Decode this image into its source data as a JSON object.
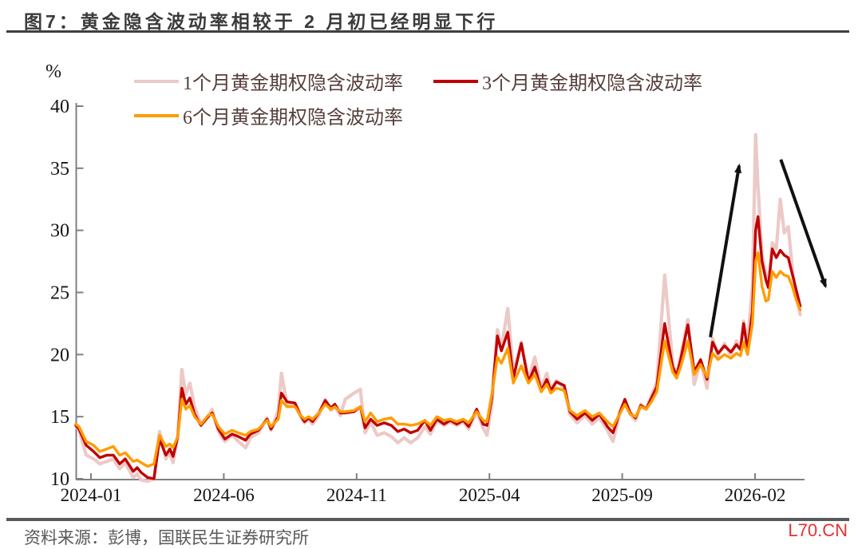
{
  "title": {
    "text": "图7：黄金隐含波动率相较于 2 月初已经明显下行"
  },
  "footer": {
    "source": "资料来源：彭博，国联民生证券研究所",
    "watermark": "L70.CN"
  },
  "colors": {
    "series_1m": "#ecc9c7",
    "series_3m": "#c00000",
    "series_6m": "#ff9c00",
    "axis": "#808080",
    "tick_label": "#141414",
    "legend_text": "#553f3a",
    "title_text": "#3b3b3b",
    "source_text": "#595959",
    "watermark_red": "#e63030",
    "arrow": "#111111"
  },
  "chart_data": {
    "type": "line",
    "unit_label": "%",
    "ylim": [
      10,
      40
    ],
    "y_ticks": [
      40,
      35,
      30,
      25,
      20,
      15,
      10
    ],
    "x_tick_labels": [
      "2024-01",
      "2024-06",
      "2024-11",
      "2025-04",
      "2025-09",
      "2026-02"
    ],
    "x_tick_months": [
      0,
      5,
      10,
      15,
      20,
      25
    ],
    "x_axis_unit": "months since 2024-01",
    "grid": false,
    "legend_position": "top",
    "x_months": [
      -0.57,
      -0.45,
      -0.18,
      0.1,
      0.33,
      0.6,
      0.84,
      1.08,
      1.29,
      1.59,
      1.74,
      1.89,
      2.13,
      2.37,
      2.58,
      2.82,
      2.97,
      3.09,
      3.27,
      3.42,
      3.57,
      3.72,
      3.9,
      4.14,
      4.41,
      4.56,
      4.8,
      5.04,
      5.31,
      5.55,
      5.82,
      6.0,
      6.3,
      6.63,
      6.78,
      7.05,
      7.17,
      7.38,
      7.68,
      7.89,
      8.04,
      8.19,
      8.34,
      8.58,
      8.82,
      9.03,
      9.18,
      9.39,
      9.57,
      9.9,
      10.14,
      10.32,
      10.53,
      10.77,
      11.04,
      11.31,
      11.55,
      11.79,
      12.03,
      12.3,
      12.57,
      12.78,
      13.02,
      13.29,
      13.53,
      13.77,
      14.01,
      14.22,
      14.52,
      14.76,
      14.91,
      15.09,
      15.3,
      15.45,
      15.69,
      15.9,
      16.2,
      16.47,
      16.71,
      16.95,
      17.16,
      17.31,
      17.52,
      17.82,
      18.03,
      18.3,
      18.6,
      18.87,
      19.14,
      19.44,
      19.65,
      19.9,
      20.1,
      20.3,
      20.5,
      20.7,
      20.9,
      21.1,
      21.3,
      21.6,
      21.9,
      22.05,
      22.2,
      22.47,
      22.71,
      22.95,
      23.19,
      23.4,
      23.61,
      23.85,
      24.09,
      24.3,
      24.45,
      24.57,
      24.72,
      24.9,
      25.02,
      25.11,
      25.26,
      25.41,
      25.5,
      25.65,
      25.8,
      25.95,
      26.1,
      26.25,
      26.4,
      26.55,
      26.7
    ],
    "series": [
      {
        "name": "1个月黄金期权隐含波动率",
        "color": "#ecc9c7",
        "width": 4.2,
        "values": [
          14.3,
          13.9,
          11.9,
          11.6,
          11.2,
          11.4,
          11.6,
          10.8,
          11.3,
          10.1,
          10.4,
          9.9,
          9.8,
          10.0,
          13.8,
          11.6,
          12.1,
          11.3,
          13.5,
          18.8,
          16.8,
          17.7,
          15.8,
          14.4,
          15.0,
          15.6,
          13.8,
          13.0,
          13.5,
          13.0,
          12.5,
          13.3,
          13.7,
          14.9,
          13.9,
          15.5,
          18.5,
          16.0,
          15.9,
          15.0,
          14.5,
          14.8,
          14.4,
          15.1,
          16.4,
          15.5,
          15.8,
          15.1,
          16.4,
          16.9,
          17.2,
          13.7,
          14.6,
          13.5,
          13.7,
          13.4,
          12.9,
          13.3,
          12.9,
          13.3,
          14.2,
          13.6,
          14.7,
          14.3,
          14.6,
          14.3,
          14.6,
          14.0,
          15.4,
          14.1,
          13.5,
          16.0,
          22.0,
          20.5,
          23.7,
          18.5,
          21.0,
          18.0,
          19.8,
          17.3,
          18.5,
          17.2,
          17.9,
          17.3,
          15.2,
          14.5,
          15.1,
          14.4,
          14.9,
          13.9,
          13.0,
          15.2,
          16.2,
          15.2,
          14.7,
          16.0,
          15.6,
          16.7,
          17.8,
          26.4,
          19.3,
          18.4,
          19.8,
          22.8,
          17.6,
          19.5,
          17.3,
          21.3,
          19.9,
          20.9,
          19.9,
          21.1,
          20.5,
          22.7,
          21.0,
          25.5,
          37.7,
          33.5,
          28.0,
          26.5,
          25.5,
          29.0,
          28.5,
          32.5,
          29.8,
          30.3,
          27.0,
          24.8,
          23.2
        ]
      },
      {
        "name": "3个月黄金期权隐含波动率",
        "color": "#c00000",
        "width": 3.4,
        "values": [
          14.3,
          14.0,
          12.7,
          12.2,
          11.7,
          11.9,
          11.9,
          11.2,
          11.6,
          10.6,
          10.9,
          10.5,
          10.1,
          10.0,
          13.2,
          11.9,
          12.4,
          11.8,
          13.4,
          17.3,
          16.0,
          16.5,
          15.2,
          14.3,
          15.0,
          15.3,
          14.0,
          13.2,
          13.6,
          13.4,
          13.1,
          13.6,
          13.9,
          14.8,
          14.0,
          15.0,
          16.9,
          16.2,
          16.1,
          15.1,
          14.6,
          14.9,
          14.6,
          15.3,
          16.3,
          15.7,
          16.0,
          15.3,
          15.3,
          15.4,
          15.8,
          14.1,
          14.8,
          14.3,
          14.5,
          14.3,
          13.8,
          14.0,
          13.7,
          13.9,
          14.7,
          13.9,
          14.8,
          14.4,
          14.7,
          14.4,
          14.7,
          14.2,
          15.6,
          14.4,
          14.3,
          16.5,
          21.5,
          20.3,
          21.8,
          18.1,
          20.9,
          17.8,
          19.0,
          17.1,
          18.0,
          17.1,
          17.8,
          17.5,
          15.4,
          14.8,
          15.3,
          14.7,
          15.2,
          14.2,
          13.7,
          15.3,
          16.4,
          15.3,
          14.9,
          15.9,
          15.6,
          16.5,
          17.4,
          22.5,
          19.0,
          18.3,
          19.6,
          22.4,
          18.6,
          19.6,
          18.0,
          21.0,
          20.1,
          20.7,
          20.2,
          20.8,
          20.4,
          22.5,
          20.3,
          23.5,
          30.0,
          31.1,
          27.5,
          26.0,
          25.4,
          28.5,
          27.8,
          28.4,
          28.0,
          27.8,
          26.5,
          25.2,
          23.9
        ]
      },
      {
        "name": "6个月黄金期权隐含波动率",
        "color": "#ff9c00",
        "width": 3.4,
        "values": [
          14.4,
          14.2,
          13.0,
          12.7,
          12.2,
          12.4,
          12.6,
          11.9,
          12.1,
          11.4,
          11.5,
          11.3,
          11.0,
          11.2,
          13.5,
          12.6,
          12.8,
          12.5,
          13.4,
          16.4,
          15.6,
          15.9,
          15.0,
          14.4,
          15.1,
          15.2,
          14.2,
          13.6,
          13.9,
          13.7,
          13.5,
          13.8,
          14.0,
          14.7,
          14.2,
          14.8,
          16.3,
          15.8,
          15.8,
          15.1,
          14.8,
          15.0,
          14.8,
          15.3,
          16.0,
          15.6,
          15.8,
          15.4,
          15.4,
          15.5,
          15.8,
          14.6,
          15.3,
          14.6,
          14.8,
          14.9,
          14.4,
          14.4,
          14.3,
          14.4,
          14.7,
          14.3,
          15.0,
          14.7,
          14.8,
          14.6,
          14.8,
          14.5,
          15.4,
          14.7,
          14.6,
          16.8,
          19.8,
          19.3,
          20.5,
          17.7,
          19.1,
          17.7,
          18.4,
          17.0,
          17.6,
          16.9,
          17.3,
          17.1,
          15.5,
          15.1,
          15.5,
          15.0,
          15.3,
          14.6,
          14.2,
          15.2,
          16.0,
          15.2,
          15.0,
          15.8,
          15.6,
          16.2,
          17.0,
          21.1,
          18.6,
          18.1,
          19.0,
          21.1,
          18.4,
          19.2,
          18.2,
          20.1,
          19.6,
          20.0,
          19.7,
          20.1,
          19.9,
          21.0,
          20.0,
          22.5,
          27.5,
          28.2,
          25.5,
          24.3,
          24.4,
          26.7,
          26.2,
          26.7,
          26.4,
          26.3,
          25.5,
          24.4,
          23.6
        ]
      }
    ],
    "annotations": [
      {
        "type": "arrow",
        "direction": "up",
        "from": {
          "t": 23.32,
          "v": 21.4
        },
        "to": {
          "t": 24.4,
          "v": 35.2
        }
      },
      {
        "type": "arrow",
        "direction": "down",
        "from": {
          "t": 25.97,
          "v": 35.7
        },
        "to": {
          "t": 27.65,
          "v": 25.5
        }
      }
    ]
  }
}
